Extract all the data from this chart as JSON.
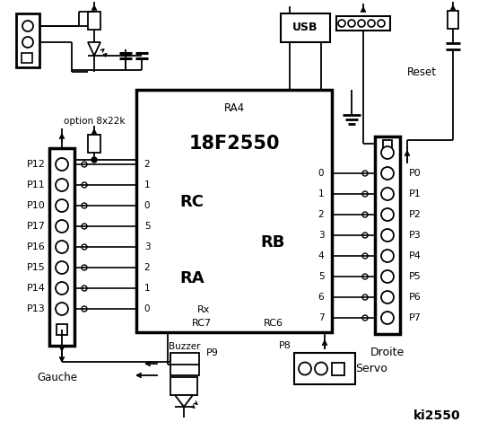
{
  "title": "ki2550",
  "bg_color": "#ffffff",
  "chip_label": "18F2550",
  "chip_sublabel": "RA4",
  "rc_label": "RC",
  "ra_label": "RA",
  "rb_label": "RB",
  "rc7_label": "RC7",
  "rc6_label": "RC6",
  "rx_label": "Rx",
  "left_pins_P": [
    "P12",
    "P11",
    "P10",
    "P17",
    "P16",
    "P15",
    "P14",
    "P13"
  ],
  "left_pins_RC": [
    "2",
    "1",
    "0",
    "5",
    "3",
    "2",
    "1",
    "0"
  ],
  "right_pins_P": [
    "P0",
    "P1",
    "P2",
    "P3",
    "P4",
    "P5",
    "P6",
    "P7"
  ],
  "right_pins_RB": [
    "0",
    "1",
    "2",
    "3",
    "4",
    "5",
    "6",
    "7"
  ],
  "gauche_label": "Gauche",
  "droite_label": "Droite",
  "usb_label": "USB",
  "reset_label": "Reset",
  "servo_label": "Servo",
  "buzzer_label": "Buzzer",
  "p8_label": "P8",
  "p9_label": "P9",
  "option_label": "option 8x22k"
}
